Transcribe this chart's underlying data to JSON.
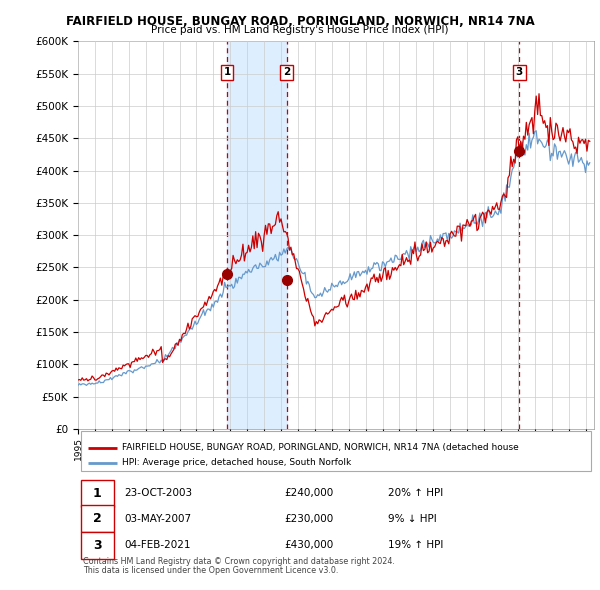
{
  "title": "FAIRFIELD HOUSE, BUNGAY ROAD, PORINGLAND, NORWICH, NR14 7NA",
  "subtitle": "Price paid vs. HM Land Registry's House Price Index (HPI)",
  "ylabel_ticks": [
    "£0",
    "£50K",
    "£100K",
    "£150K",
    "£200K",
    "£250K",
    "£300K",
    "£350K",
    "£400K",
    "£450K",
    "£500K",
    "£550K",
    "£600K"
  ],
  "ylim": [
    0,
    600000
  ],
  "ytick_vals": [
    0,
    50000,
    100000,
    150000,
    200000,
    250000,
    300000,
    350000,
    400000,
    450000,
    500000,
    550000,
    600000
  ],
  "xlim_start": 1995.0,
  "xlim_end": 2025.5,
  "red_line_color": "#cc0000",
  "blue_line_color": "#6699cc",
  "shade_color": "#ddeeff",
  "sale_marker_color": "#990000",
  "vline_color": "#cc0000",
  "sale_points": [
    {
      "num": 1,
      "year": 2003.81,
      "price": 240000,
      "label": "23-OCT-2003",
      "amount": "£240,000",
      "pct": "20% ↑ HPI"
    },
    {
      "num": 2,
      "year": 2007.33,
      "price": 230000,
      "label": "03-MAY-2007",
      "amount": "£230,000",
      "pct": "9% ↓ HPI"
    },
    {
      "num": 3,
      "year": 2021.09,
      "price": 430000,
      "label": "04-FEB-2021",
      "amount": "£430,000",
      "pct": "19% ↑ HPI"
    }
  ],
  "legend_property": "FAIRFIELD HOUSE, BUNGAY ROAD, PORINGLAND, NORWICH, NR14 7NA (detached house",
  "legend_hpi": "HPI: Average price, detached house, South Norfolk",
  "footer1": "Contains HM Land Registry data © Crown copyright and database right 2024.",
  "footer2": "This data is licensed under the Open Government Licence v3.0."
}
